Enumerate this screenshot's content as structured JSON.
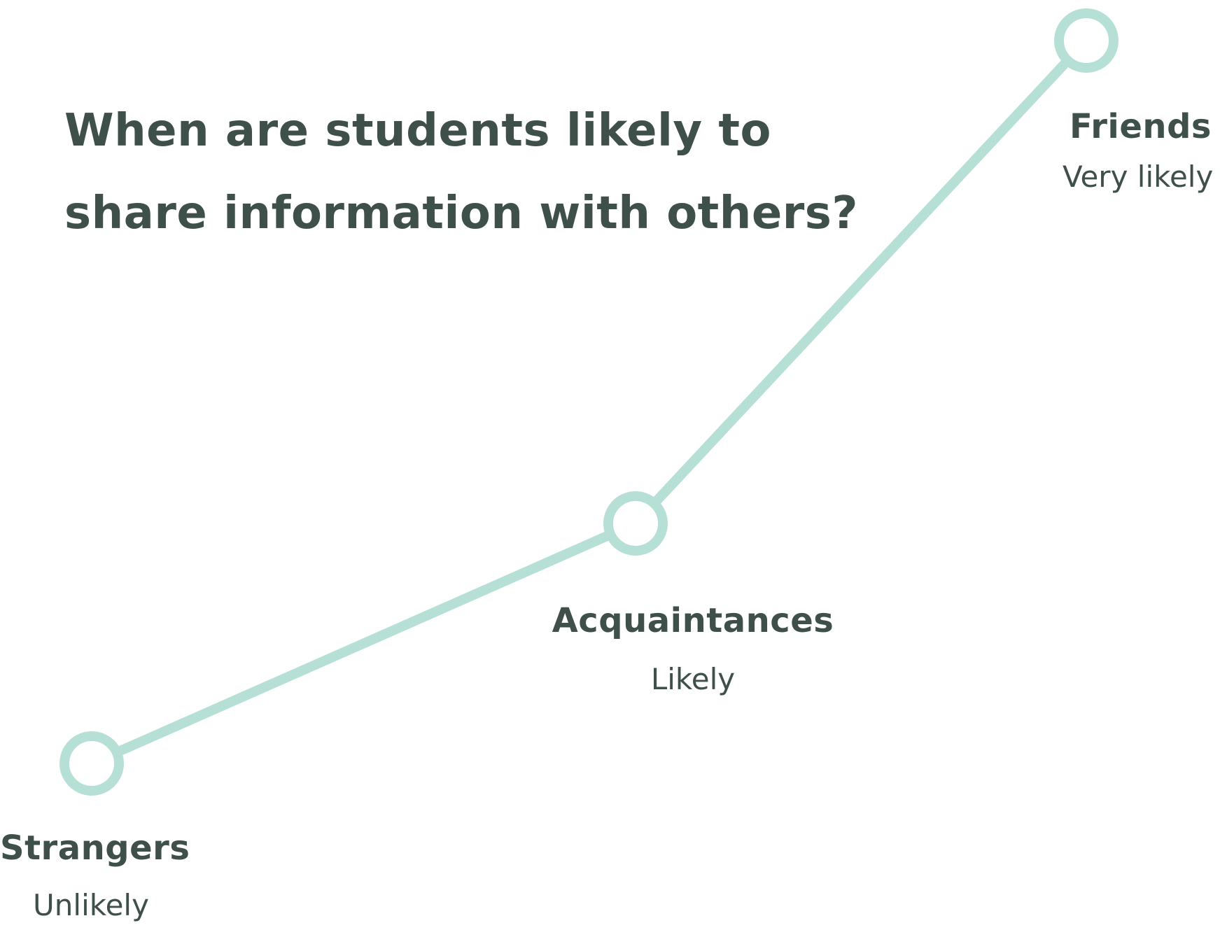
{
  "title_lines": [
    "When are students likely to",
    "share information with others?"
  ],
  "colors": {
    "line": "#b6e0d6",
    "text": "#3f4f4a",
    "background": "#ffffff"
  },
  "nodes": [
    {
      "name": "Strangers",
      "value": "Unlikely",
      "level": 1
    },
    {
      "name": "Acquaintances",
      "value": "Likely",
      "level": 2
    },
    {
      "name": "Friends",
      "value": "Very likely",
      "level": 3
    }
  ]
}
